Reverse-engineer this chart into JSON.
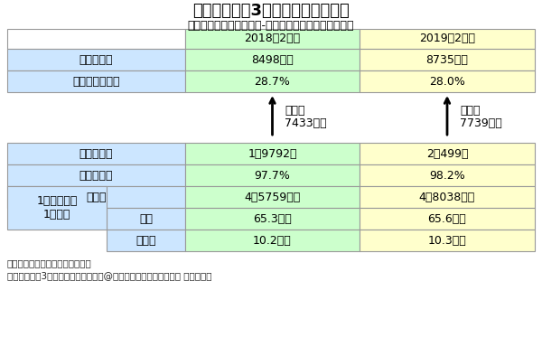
{
  "title": "コンビニ大手3社の本部の売り上げ",
  "subtitle": "セブンイレブン（セブン-イレブン・ジャパン）の場合",
  "col_headers": [
    "2018年2月期",
    "2019年2月期"
  ],
  "top_rows": [
    {
      "label": "本部売上高",
      "v1": "8498億円",
      "v2": "8735億円"
    },
    {
      "label": "本部営業利益率",
      "v1": "28.7%",
      "v2": "28.0%"
    }
  ],
  "arrow_line1": [
    "本部へ",
    "本部へ"
  ],
  "arrow_line2": [
    "7433億円",
    "7739億円"
  ],
  "bot_rows": [
    {
      "label": "ＦＣ店舗数",
      "sub": null,
      "v1": "1万9792店",
      "v2": "2万499店"
    },
    {
      "label": "ＦＣ店舗率",
      "sub": null,
      "v1": "97.7%",
      "v2": "98.2%"
    },
    {
      "label": "売上高",
      "sub": null,
      "v1": "4兆5759億円",
      "v2": "4兆8038億円"
    },
    {
      "label": "1店舗あたり\n1日平均",
      "sub": "日販",
      "v1": "65.3万円",
      "v2": "65.6万円"
    },
    {
      "label": "1店舗あたり\n1日平均",
      "sub": "本部へ",
      "v1": "10.2万円",
      "v2": "10.3万円"
    }
  ],
  "footnotes": [
    "決算書など開示データを基に作成",
    "コンビニ大手3社の本部の売り上げ　@池田陽介　ダイヤモンド社 禁無断転載"
  ],
  "c_blue": "#cce6ff",
  "c_green": "#ccffcc",
  "c_yellow": "#ffffcc",
  "c_white": "#ffffff",
  "c_border": "#999999"
}
